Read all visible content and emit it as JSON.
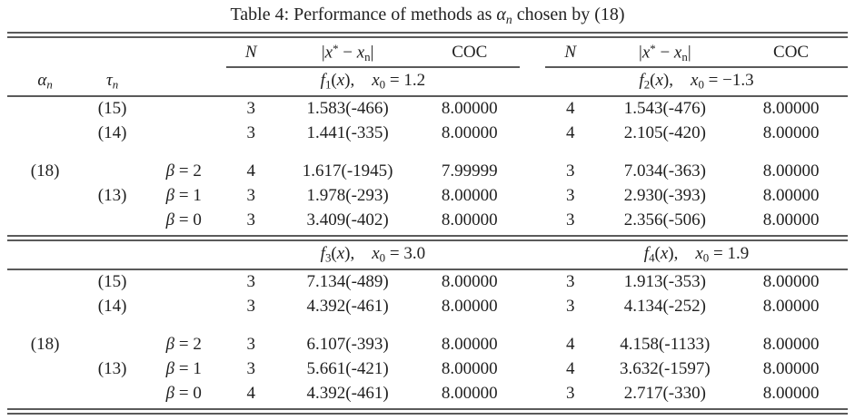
{
  "page": {
    "background": "#ffffff",
    "text_color": "#1f1f1f",
    "rule_color": "#5a5a5a"
  },
  "title_html": "Table 4: Performance of methods as <i>&#945;<sub>n</sub></i> chosen by (18)",
  "table": {
    "col_headers": {
      "alpha_html": "<i>&#945;<sub>n</sub></i>",
      "tau_html": "<i>&#964;<sub>n</sub></i>",
      "n_html": "<i>N</i>",
      "err_html": "|<i>x</i><sup>*</sup> &#8722; <i>x</i><sub>n</sub>|",
      "coc": "COC"
    },
    "sections": [
      {
        "left_fn_html": "<i>f</i><sub>1</sub>(<i>x</i>),&emsp;<i>x</i><sub>0</sub> = 1.2",
        "right_fn_html": "<i>f</i><sub>2</sub>(<i>x</i>),&emsp;<i>x</i><sub>0</sub> = &#8722;1.3",
        "rows": [
          {
            "alpha": "",
            "tau": "(15)",
            "beta_html": "",
            "n1": "3",
            "err1": "1.583(-466)",
            "coc1": "8.00000",
            "n2": "4",
            "err2": "1.543(-476)",
            "coc2": "8.00000"
          },
          {
            "alpha": "",
            "tau": "(14)",
            "beta_html": "",
            "n1": "3",
            "err1": "1.441(-335)",
            "coc1": "8.00000",
            "n2": "4",
            "err2": "2.105(-420)",
            "coc2": "8.00000"
          },
          {
            "alpha": "(18)",
            "tau": "",
            "beta_html": "<i>&#946;</i> = 2",
            "n1": "4",
            "err1": "1.617(-1945)",
            "coc1": "7.99999",
            "n2": "3",
            "err2": "7.034(-363)",
            "coc2": "8.00000"
          },
          {
            "alpha": "",
            "tau": "(13)",
            "beta_html": "<i>&#946;</i> = 1",
            "n1": "3",
            "err1": "1.978(-293)",
            "coc1": "8.00000",
            "n2": "3",
            "err2": "2.930(-393)",
            "coc2": "8.00000"
          },
          {
            "alpha": "",
            "tau": "",
            "beta_html": "<i>&#946;</i> = 0",
            "n1": "3",
            "err1": "3.409(-402)",
            "coc1": "8.00000",
            "n2": "3",
            "err2": "2.356(-506)",
            "coc2": "8.00000"
          }
        ]
      },
      {
        "left_fn_html": "<i>f</i><sub>3</sub>(<i>x</i>),&emsp;<i>x</i><sub>0</sub> = 3.0",
        "right_fn_html": "<i>f</i><sub>4</sub>(<i>x</i>),&emsp;<i>x</i><sub>0</sub> = 1.9",
        "rows": [
          {
            "alpha": "",
            "tau": "(15)",
            "beta_html": "",
            "n1": "3",
            "err1": "7.134(-489)",
            "coc1": "8.00000",
            "n2": "3",
            "err2": "1.913(-353)",
            "coc2": "8.00000"
          },
          {
            "alpha": "",
            "tau": "(14)",
            "beta_html": "",
            "n1": "3",
            "err1": "4.392(-461)",
            "coc1": "8.00000",
            "n2": "3",
            "err2": "4.134(-252)",
            "coc2": "8.00000"
          },
          {
            "alpha": "(18)",
            "tau": "",
            "beta_html": "<i>&#946;</i> = 2",
            "n1": "3",
            "err1": "6.107(-393)",
            "coc1": "8.00000",
            "n2": "4",
            "err2": "4.158(-1133)",
            "coc2": "8.00000"
          },
          {
            "alpha": "",
            "tau": "(13)",
            "beta_html": "<i>&#946;</i> = 1",
            "n1": "3",
            "err1": "5.661(-421)",
            "coc1": "8.00000",
            "n2": "4",
            "err2": "3.632(-1597)",
            "coc2": "8.00000"
          },
          {
            "alpha": "",
            "tau": "",
            "beta_html": "<i>&#946;</i> = 0",
            "n1": "4",
            "err1": "4.392(-461)",
            "coc1": "8.00000",
            "n2": "3",
            "err2": "2.717(-330)",
            "coc2": "8.00000"
          }
        ]
      }
    ]
  }
}
